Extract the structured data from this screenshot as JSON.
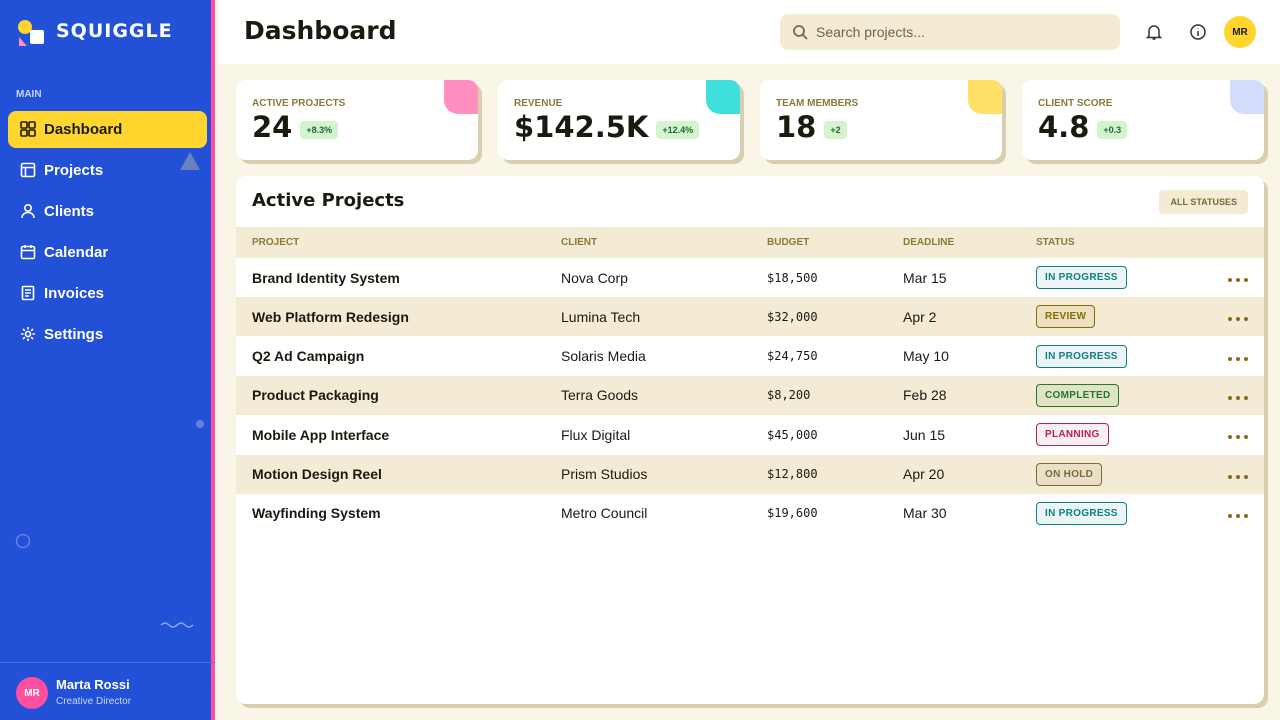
{
  "sidebar": {
    "brand": "SQUIGGLE",
    "section": "MAIN",
    "nav": [
      "Dashboard",
      "Projects",
      "Clients",
      "Calendar",
      "Invoices",
      "Settings"
    ],
    "user": {
      "initials": "MR",
      "name": "Marta Rossi",
      "role": "Creative Director"
    }
  },
  "header": {
    "title": "Dashboard",
    "search": "Search projects...",
    "avatar": "MR"
  },
  "stats": [
    {
      "label": "ACTIVE PROJECTS",
      "value": "24",
      "delta": "+8.3%",
      "accent": "#ff8fc0"
    },
    {
      "label": "REVENUE",
      "value": "$142.5K",
      "delta": "+12.4%",
      "accent": "#3fe0dc"
    },
    {
      "label": "TEAM MEMBERS",
      "value": "18",
      "delta": "+2",
      "accent": "#ffe066"
    },
    {
      "label": "CLIENT SCORE",
      "value": "4.8",
      "delta": "+0.3",
      "accent": "#d4dcfb"
    }
  ],
  "table": {
    "title": "Active Projects",
    "filter": "ALL STATUSES",
    "columns": [
      "PROJECT",
      "CLIENT",
      "BUDGET",
      "DEADLINE",
      "STATUS"
    ],
    "rows": [
      {
        "project": "Brand Identity System",
        "client": "Nova Corp",
        "budget": "$18,500",
        "deadline": "Mar 15",
        "status": {
          "label": "IN PROGRESS",
          "color": "#0f7f86"
        }
      },
      {
        "project": "Web Platform Redesign",
        "client": "Lumina Tech",
        "budget": "$32,000",
        "deadline": "Apr 2",
        "status": {
          "label": "REVIEW",
          "color": "#8a6a00"
        }
      },
      {
        "project": "Q2 Ad Campaign",
        "client": "Solaris Media",
        "budget": "$24,750",
        "deadline": "May 10",
        "status": {
          "label": "IN PROGRESS",
          "color": "#0f7f86"
        }
      },
      {
        "project": "Product Packaging",
        "client": "Terra Goods",
        "budget": "$8,200",
        "deadline": "Feb 28",
        "status": {
          "label": "COMPLETED",
          "color": "#1e7a2e"
        }
      },
      {
        "project": "Mobile App Interface",
        "client": "Flux Digital",
        "budget": "$45,000",
        "deadline": "Jun 15",
        "status": {
          "label": "PLANNING",
          "color": "#b0245e"
        }
      },
      {
        "project": "Motion Design Reel",
        "client": "Prism Studios",
        "budget": "$12,800",
        "deadline": "Apr 20",
        "status": {
          "label": "ON HOLD",
          "color": "#7a6a3a"
        }
      },
      {
        "project": "Wayfinding System",
        "client": "Metro Council",
        "budget": "$19,600",
        "deadline": "Mar 30",
        "status": {
          "label": "IN PROGRESS",
          "color": "#0f7f86"
        }
      }
    ]
  }
}
